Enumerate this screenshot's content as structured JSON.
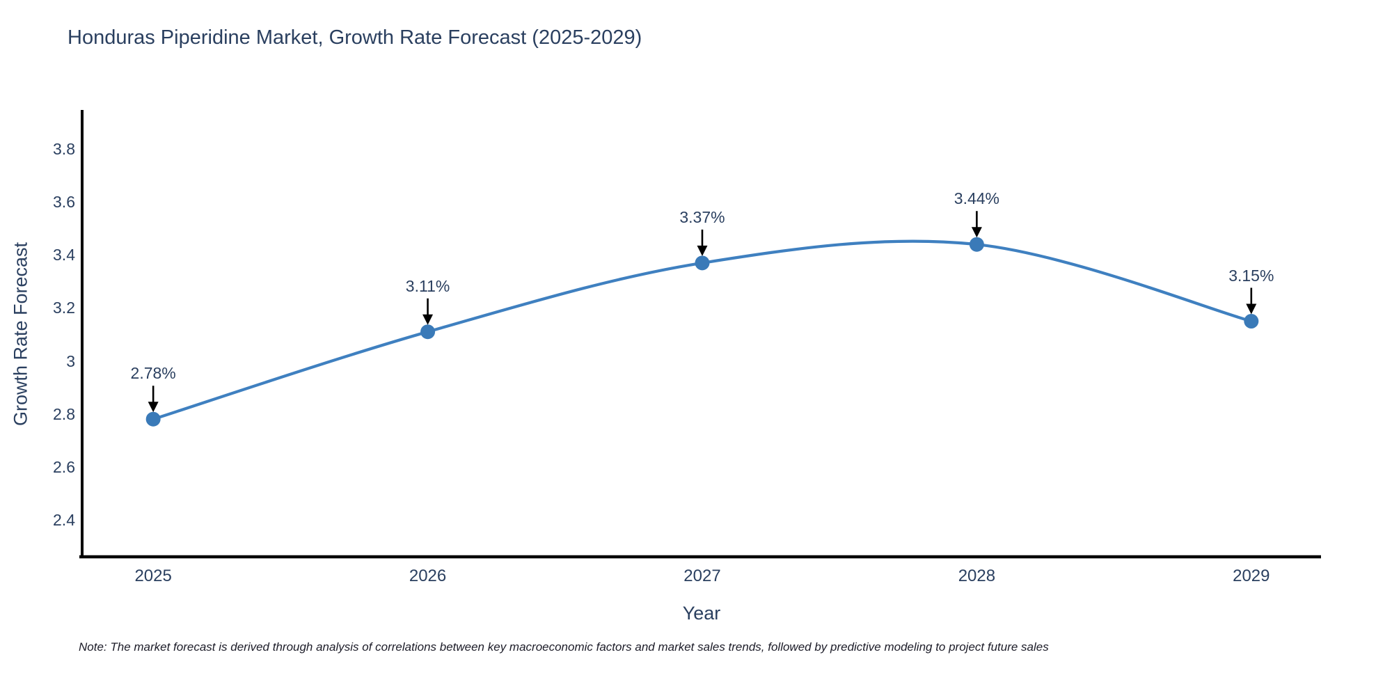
{
  "title": "Honduras Piperidine Market, Growth Rate Forecast (2025-2029)",
  "footnote": "Note: The market forecast is derived through analysis of correlations between key macroeconomic factors and market sales trends, followed by predictive modeling to project future sales",
  "chart_data": {
    "type": "line",
    "line_shape": "spline",
    "title": "Honduras Piperidine Market, Growth Rate Forecast (2025-2029)",
    "xlabel": "Year",
    "ylabel": "Growth Rate Forecast",
    "x": [
      2025,
      2026,
      2027,
      2028,
      2029
    ],
    "values": [
      2.78,
      3.11,
      3.37,
      3.44,
      3.15
    ],
    "point_labels": [
      "2.78%",
      "3.11%",
      "3.37%",
      "3.44%",
      "3.15%"
    ],
    "xticks": [
      2025,
      2026,
      2027,
      2028,
      2029
    ],
    "xtick_labels": [
      "2025",
      "2026",
      "2027",
      "2028",
      "2029"
    ],
    "yticks": [
      2.4,
      2.6,
      2.8,
      3,
      3.2,
      3.4,
      3.6,
      3.8
    ],
    "ytick_labels": [
      "2.4",
      "2.6",
      "2.8",
      "3",
      "3.2",
      "3.4",
      "3.6",
      "3.8"
    ],
    "xlim": [
      2024.741,
      2029.254
    ],
    "ylim": [
      2.26,
      3.948
    ],
    "grid": false,
    "legend": "none",
    "colors": {
      "line": "#3f80c0",
      "marker": "#3a7ab8",
      "arrow": "#000000",
      "axis": "#000000",
      "text": "#2a3f5f"
    }
  }
}
